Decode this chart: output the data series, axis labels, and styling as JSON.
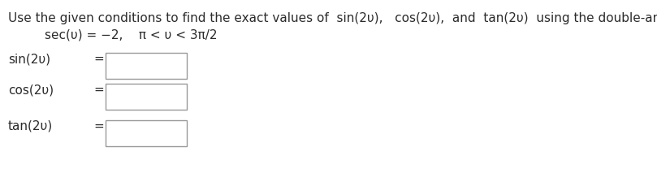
{
  "background_color": "#ffffff",
  "title_segments": [
    [
      "Use the given conditions to find the exact values of  sin(2υ),   cos(2υ),  and  tan(2υ)  using the double-angle formulas.",
      "#2b2b2b"
    ]
  ],
  "condition_text": "sec(υ) = −2,    π < υ < 3π/2",
  "label_texts": [
    "sin(2υ)",
    "cos(2υ)",
    "tan(2υ)"
  ],
  "title_fontsize": 11.0,
  "label_fontsize": 11.0,
  "condition_fontsize": 11.0,
  "text_color": "#2b2b2b",
  "box_edge_color": "#999999"
}
